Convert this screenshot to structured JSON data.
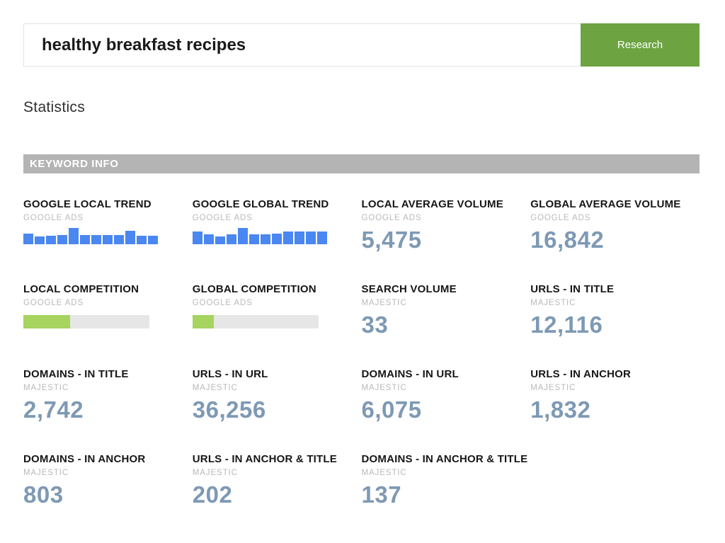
{
  "search": {
    "query": "healthy breakfast recipes",
    "button_label": "Research"
  },
  "page": {
    "heading": "Statistics",
    "section_banner": "KEYWORD INFO"
  },
  "colors": {
    "accent_green": "#6da441",
    "bar_blue": "#4a87f0",
    "progress_green": "#a6d45f",
    "progress_track": "#e6e6e6",
    "value_slate": "#7e99b4",
    "banner_gray": "#b4b4b4"
  },
  "cards": [
    {
      "title": "GOOGLE LOCAL TREND",
      "source": "GOOGLE ADS",
      "type": "trend",
      "chart": "local_trend"
    },
    {
      "title": "GOOGLE GLOBAL TREND",
      "source": "GOOGLE ADS",
      "type": "trend",
      "chart": "global_trend"
    },
    {
      "title": "LOCAL AVERAGE VOLUME",
      "source": "GOOGLE ADS",
      "type": "value",
      "value": "5,475"
    },
    {
      "title": "GLOBAL AVERAGE VOLUME",
      "source": "GOOGLE ADS",
      "type": "value",
      "value": "16,842"
    },
    {
      "title": "LOCAL COMPETITION",
      "source": "GOOGLE ADS",
      "type": "progress",
      "percent": 37
    },
    {
      "title": "GLOBAL COMPETITION",
      "source": "GOOGLE ADS",
      "type": "progress",
      "percent": 17
    },
    {
      "title": "SEARCH VOLUME",
      "source": "MAJESTIC",
      "type": "value",
      "value": "33"
    },
    {
      "title": "URLS - IN TITLE",
      "source": "MAJESTIC",
      "type": "value",
      "value": "12,116"
    },
    {
      "title": "DOMAINS - IN TITLE",
      "source": "MAJESTIC",
      "type": "value",
      "value": "2,742"
    },
    {
      "title": "URLS - IN URL",
      "source": "MAJESTIC",
      "type": "value",
      "value": "36,256"
    },
    {
      "title": "DOMAINS - IN URL",
      "source": "MAJESTIC",
      "type": "value",
      "value": "6,075"
    },
    {
      "title": "URLS - IN ANCHOR",
      "source": "MAJESTIC",
      "type": "value",
      "value": "1,832"
    },
    {
      "title": "DOMAINS - IN ANCHOR",
      "source": "MAJESTIC",
      "type": "value",
      "value": "803"
    },
    {
      "title": "URLS - IN ANCHOR & TITLE",
      "source": "MAJESTIC",
      "type": "value",
      "value": "202"
    },
    {
      "title": "DOMAINS - IN ANCHOR & TITLE",
      "source": "MAJESTIC",
      "type": "value",
      "value": "137"
    }
  ],
  "chart_data": [
    {
      "id": "local_trend",
      "type": "bar",
      "title": "GOOGLE LOCAL TREND",
      "subtitle": "GOOGLE ADS",
      "values": [
        64,
        48,
        50,
        57,
        100,
        57,
        55,
        57,
        57,
        82,
        50,
        53
      ],
      "ylim": [
        0,
        100
      ],
      "note": "relative monthly search interest, 12 periods, no axes shown"
    },
    {
      "id": "global_trend",
      "type": "bar",
      "title": "GOOGLE GLOBAL TREND",
      "subtitle": "GOOGLE ADS",
      "values": [
        78,
        62,
        48,
        62,
        100,
        62,
        60,
        66,
        78,
        78,
        78,
        78
      ],
      "ylim": [
        0,
        100
      ],
      "note": "relative monthly search interest, 12 periods, no axes shown"
    }
  ]
}
